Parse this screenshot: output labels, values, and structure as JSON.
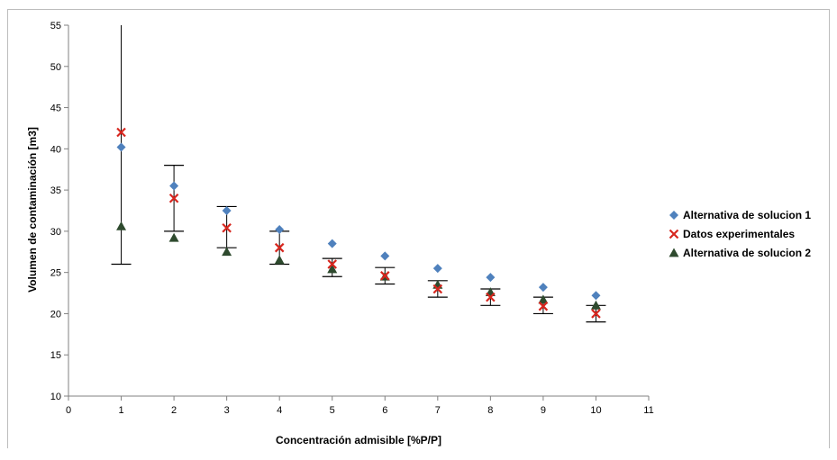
{
  "chart_data": {
    "type": "scatter",
    "title": "",
    "xlabel": "Concentración admisible [%P/P]",
    "ylabel": "Volumen de contaminación [m3]",
    "xlim": [
      0,
      11
    ],
    "ylim": [
      10,
      55
    ],
    "x_ticks": [
      0,
      1,
      2,
      3,
      4,
      5,
      6,
      7,
      8,
      9,
      10,
      11
    ],
    "y_ticks": [
      10,
      15,
      20,
      25,
      30,
      35,
      40,
      45,
      50,
      55
    ],
    "grid": false,
    "legend_position": "right",
    "series": [
      {
        "name": "Alternativa de solucion 1",
        "marker": "diamond",
        "color": "#4f81bd",
        "x": [
          1,
          2,
          3,
          4,
          5,
          6,
          7,
          8,
          9,
          10
        ],
        "y": [
          40.2,
          35.5,
          32.5,
          30.2,
          28.5,
          27.0,
          25.5,
          24.4,
          23.2,
          22.2
        ]
      },
      {
        "name": "Datos experimentales",
        "marker": "x",
        "color": "#d7261e",
        "x": [
          1,
          2,
          3,
          4,
          5,
          6,
          7,
          8,
          9,
          10
        ],
        "y": [
          42.0,
          34.0,
          30.4,
          28.0,
          26.0,
          24.6,
          23.0,
          22.0,
          20.9,
          20.0
        ],
        "error_bars": [
          [
            26,
            55
          ],
          [
            30,
            38
          ],
          [
            28,
            33
          ],
          [
            26,
            30
          ],
          [
            24.5,
            26.7
          ],
          [
            23.6,
            25.6
          ],
          [
            22,
            24
          ],
          [
            21,
            23
          ],
          [
            20,
            22
          ],
          [
            19,
            21
          ]
        ]
      },
      {
        "name": "Alternativa de solucion 2",
        "marker": "triangle",
        "color": "#2e4a2e",
        "x": [
          1,
          2,
          3,
          4,
          5,
          6,
          7,
          8,
          9,
          10
        ],
        "y": [
          30.6,
          29.2,
          27.5,
          26.5,
          25.4,
          24.5,
          23.5,
          22.6,
          21.7,
          21.0
        ]
      }
    ]
  }
}
